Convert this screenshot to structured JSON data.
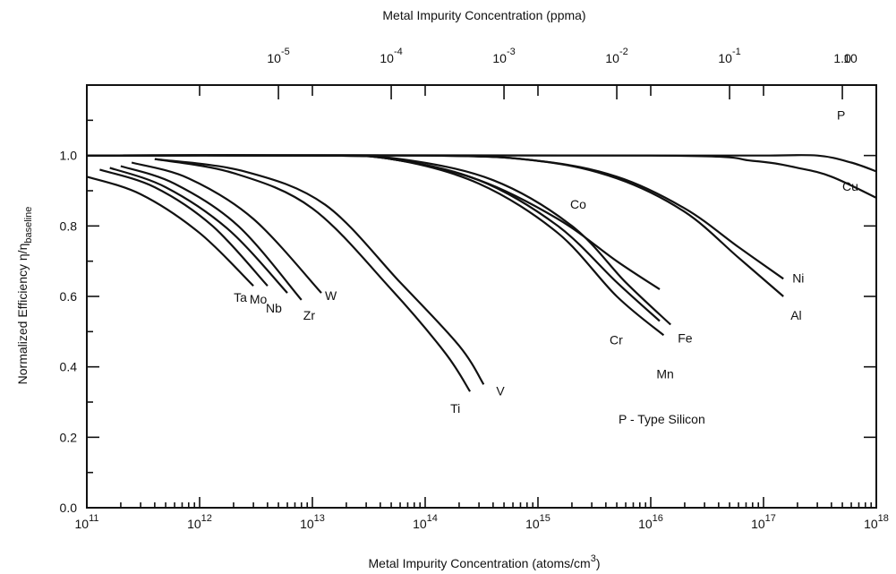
{
  "chart_data": {
    "type": "line",
    "title": "",
    "xlabel_prefix": "Metal Impurity Concentration (atoms/cm",
    "xlabel_sup": "3",
    "xlabel_suffix": ")",
    "x2label": "Metal Impurity Concentration (ppma)",
    "ylabel_prefix": "Normalized Efficiency η/η",
    "ylabel_sub": "baseline",
    "xscale": "log",
    "xlim": [
      100000000000.0,
      1e+18
    ],
    "ylim": [
      0.0,
      1.2
    ],
    "grid": false,
    "x_ticks": [
      {
        "base": "10",
        "exp": "11",
        "value": 100000000000.0
      },
      {
        "base": "10",
        "exp": "12",
        "value": 1000000000000.0
      },
      {
        "base": "10",
        "exp": "13",
        "value": 10000000000000.0
      },
      {
        "base": "10",
        "exp": "14",
        "value": 100000000000000.0
      },
      {
        "base": "10",
        "exp": "15",
        "value": 1000000000000000.0
      },
      {
        "base": "10",
        "exp": "16",
        "value": 1e+16
      },
      {
        "base": "10",
        "exp": "17",
        "value": 1e+17
      },
      {
        "base": "10",
        "exp": "18",
        "value": 1e+18
      }
    ],
    "x2_ticks": [
      {
        "base": "10",
        "exp": "-5",
        "value": 5000000000000.0
      },
      {
        "base": "10",
        "exp": "-4",
        "value": 50000000000000.0
      },
      {
        "base": "10",
        "exp": "-3",
        "value": 500000000000000.0
      },
      {
        "base": "10",
        "exp": "-2",
        "value": 5000000000000000.0
      },
      {
        "base": "10",
        "exp": "-1",
        "value": 5e+16
      },
      {
        "base": "1.0",
        "exp": "",
        "value": 5e+17
      },
      {
        "base": "10",
        "exp": "",
        "value": 5e+18
      }
    ],
    "y_ticks": [
      "0.0",
      "0.2",
      "0.4",
      "0.6",
      "0.8",
      "1.0"
    ],
    "y_tick_values": [
      0.0,
      0.2,
      0.4,
      0.6,
      0.8,
      1.0
    ],
    "annotation": "P - Type Silicon",
    "series": [
      {
        "name": "Ta",
        "x": [
          100000000000.0,
          300000000000.0,
          1000000000000.0,
          3000000000000.0
        ],
        "y": [
          0.94,
          0.89,
          0.78,
          0.63
        ]
      },
      {
        "name": "Mo",
        "x": [
          130000000000.0,
          400000000000.0,
          1300000000000.0,
          4000000000000.0
        ],
        "y": [
          0.96,
          0.91,
          0.8,
          0.63
        ]
      },
      {
        "name": "Nb",
        "x": [
          160000000000.0,
          500000000000.0,
          1800000000000.0,
          6000000000000.0
        ],
        "y": [
          0.965,
          0.91,
          0.79,
          0.61
        ]
      },
      {
        "name": "Zr",
        "x": [
          200000000000.0,
          600000000000.0,
          2200000000000.0,
          8000000000000.0
        ],
        "y": [
          0.97,
          0.92,
          0.8,
          0.59
        ]
      },
      {
        "name": "W",
        "x": [
          250000000000.0,
          800000000000.0,
          3000000000000.0,
          12000000000000.0
        ],
        "y": [
          0.98,
          0.935,
          0.82,
          0.61
        ]
      },
      {
        "name": "Ti",
        "x": [
          400000000000.0,
          2000000000000.0,
          10000000000000.0,
          50000000000000.0,
          150000000000000.0,
          250000000000000.0
        ],
        "y": [
          0.99,
          0.95,
          0.85,
          0.62,
          0.44,
          0.33
        ]
      },
      {
        "name": "V",
        "x": [
          400000000000.0,
          2500000000000.0,
          13000000000000.0,
          60000000000000.0,
          200000000000000.0,
          330000000000000.0
        ],
        "y": [
          0.99,
          0.955,
          0.86,
          0.64,
          0.46,
          0.35
        ]
      },
      {
        "name": "Co",
        "x": [
          100000000000.0,
          10000000000000.0,
          50000000000000.0,
          300000000000000.0,
          1500000000000000.0,
          5000000000000000.0,
          1.2e+16
        ],
        "y": [
          1.0,
          1.0,
          0.99,
          0.93,
          0.82,
          0.7,
          0.62
        ]
      },
      {
        "name": "Cr",
        "x": [
          100000000000.0,
          10000000000000.0,
          50000000000000.0,
          300000000000000.0,
          1500000000000000.0,
          5000000000000000.0,
          1.2e+16
        ],
        "y": [
          1.0,
          1.0,
          0.99,
          0.93,
          0.8,
          0.64,
          0.53
        ]
      },
      {
        "name": "Fe",
        "x": [
          100000000000.0,
          10000000000000.0,
          60000000000000.0,
          400000000000000.0,
          2000000000000000.0,
          6000000000000000.0,
          1.5e+16
        ],
        "y": [
          1.0,
          1.0,
          0.99,
          0.93,
          0.8,
          0.64,
          0.52
        ]
      },
      {
        "name": "Mn",
        "x": [
          100000000000.0,
          10000000000000.0,
          50000000000000.0,
          300000000000000.0,
          1500000000000000.0,
          5000000000000000.0,
          1.3e+16
        ],
        "y": [
          1.0,
          1.0,
          0.99,
          0.92,
          0.78,
          0.6,
          0.49
        ]
      },
      {
        "name": "Ni",
        "x": [
          100000000000.0,
          100000000000000.0,
          1000000000000000.0,
          5000000000000000.0,
          2e+16,
          6e+16,
          1.5e+17
        ],
        "y": [
          1.0,
          1.0,
          0.985,
          0.94,
          0.85,
          0.74,
          0.65
        ]
      },
      {
        "name": "Al",
        "x": [
          100000000000.0,
          100000000000000.0,
          1000000000000000.0,
          5000000000000000.0,
          2e+16,
          6e+16,
          1.5e+17
        ],
        "y": [
          1.0,
          1.0,
          0.985,
          0.935,
          0.84,
          0.71,
          0.6
        ]
      },
      {
        "name": "P",
        "x": [
          100000000000.0,
          1e+16,
          1e+17,
          3e+17,
          6e+17,
          1e+18
        ],
        "y": [
          1.0,
          1.0,
          1.0,
          1.0,
          0.98,
          0.955
        ]
      },
      {
        "name": "Cu",
        "x": [
          100000000000.0,
          1e+16,
          8e+16,
          2e+17,
          4e+17,
          1e+18
        ],
        "y": [
          1.0,
          1.0,
          0.985,
          0.965,
          0.94,
          0.88
        ]
      }
    ]
  }
}
